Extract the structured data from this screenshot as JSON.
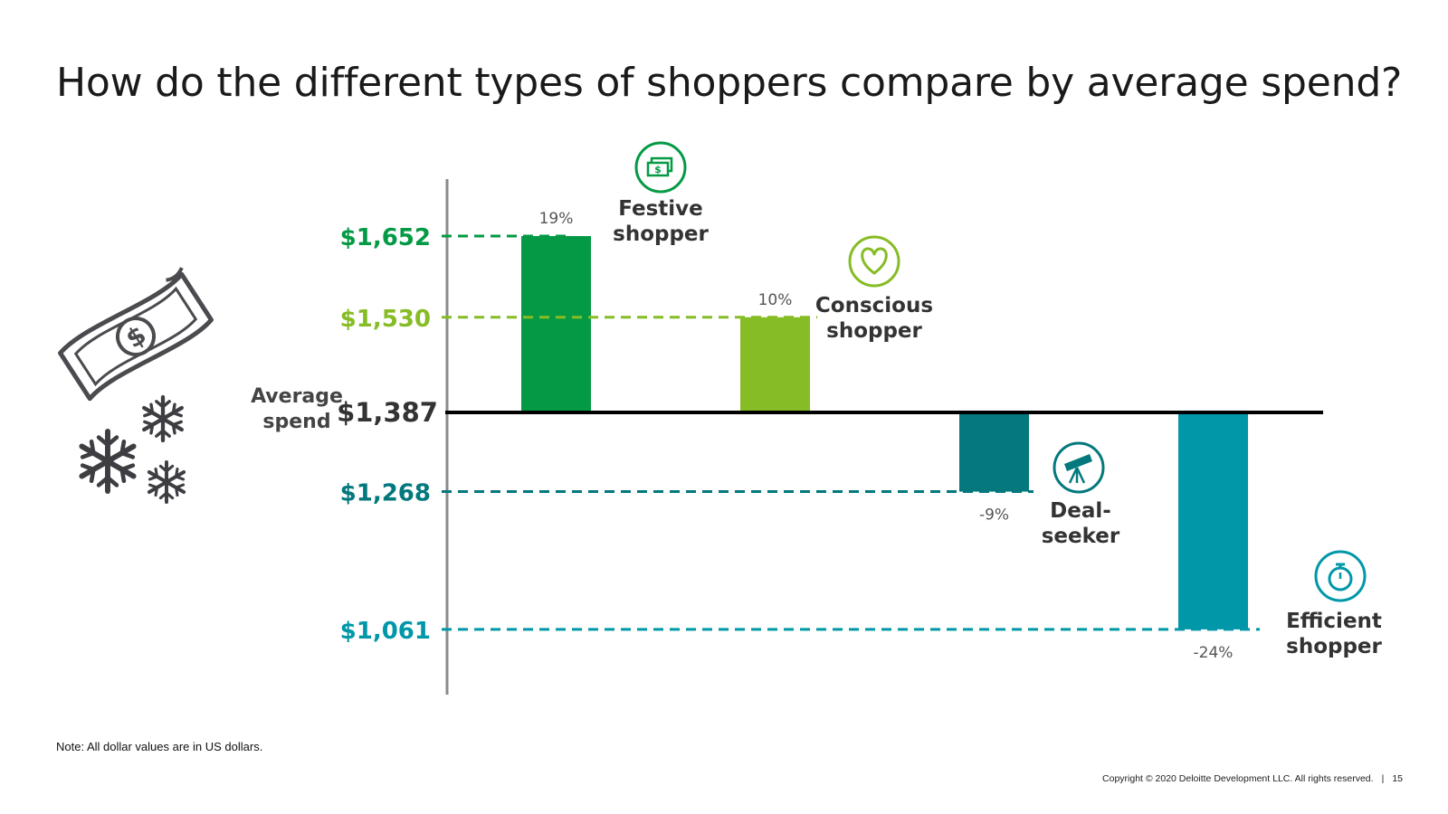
{
  "title": "How do the different types of shoppers compare by average spend?",
  "note": "Note: All dollar values are in US dollars.",
  "footer": {
    "copyright": "Copyright © 2020 Deloitte Development LLC. All rights reserved.",
    "separator": "|",
    "page_number": "15"
  },
  "chart_data": {
    "type": "bar",
    "baseline": {
      "label_line1": "Average",
      "label_line2": "spend",
      "value": 1387,
      "value_label": "$1,387"
    },
    "ylim": [
      950,
      1720
    ],
    "categories": [
      "Festive shopper",
      "Conscious shopper",
      "Deal-seeker",
      "Efficient shopper"
    ],
    "series": [
      {
        "values": [
          1652,
          1530,
          1268,
          1061
        ],
        "value_labels": [
          "$1,652",
          "$1,530",
          "$1,268",
          "$1,061"
        ],
        "pct_labels": [
          "19%",
          "10%",
          "-9%",
          "-24%"
        ],
        "name_lines": [
          [
            "Festive",
            "shopper"
          ],
          [
            "Conscious",
            "shopper"
          ],
          [
            "Deal-",
            "seeker"
          ],
          [
            "Efficient",
            "shopper"
          ]
        ],
        "icons": [
          "money-icon",
          "heart-icon",
          "telescope-icon",
          "stopwatch-icon"
        ],
        "colors": [
          "#049A45",
          "#86BC25",
          "#03787D",
          "#0097A9"
        ]
      }
    ],
    "grid": false,
    "legend": "none",
    "decoration_icons": [
      "dollar-bill-icon",
      "snowflake-icon"
    ]
  }
}
